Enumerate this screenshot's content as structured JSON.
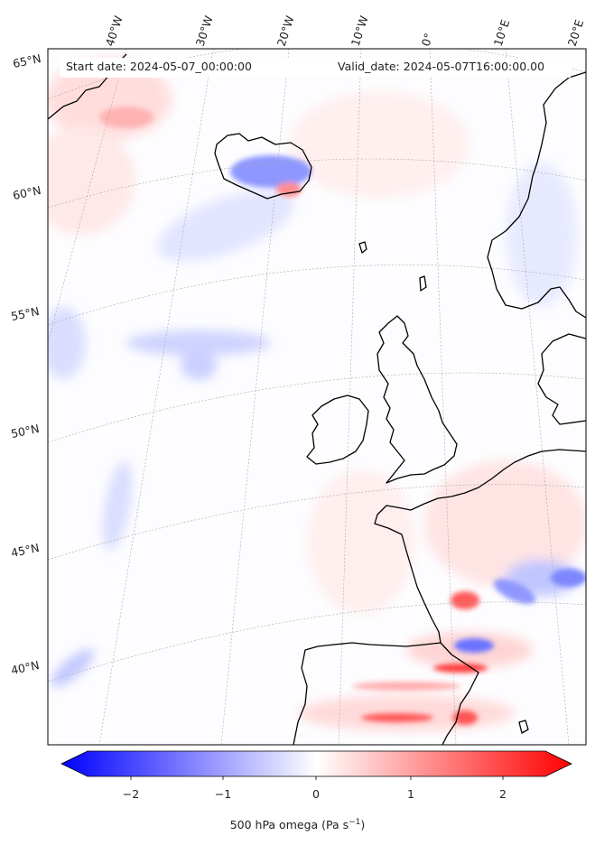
{
  "header": {
    "start_date": "Start date: 2024-05-07_00:00:00",
    "valid_date": "Valid_date: 2024-05-07T16:00:00.00"
  },
  "map": {
    "longitude_labels": [
      "40°W",
      "30°W",
      "20°W",
      "10°W",
      "0°",
      "10°E",
      "20°E"
    ],
    "latitude_labels": [
      "65°N",
      "60°N",
      "55°N",
      "50°N",
      "45°N",
      "40°N"
    ],
    "field": "500 hPa omega",
    "colormap": "bwr",
    "colors": {
      "negative": "#0000ff",
      "neutral": "#ffffff",
      "positive": "#ff0000",
      "coast": "#000000",
      "grid": "#999999"
    }
  },
  "colorbar": {
    "ticks": [
      "−2",
      "−1",
      "0",
      "1",
      "2"
    ],
    "range": [
      -2.6,
      2.6
    ],
    "extend": "both",
    "label_text": "500 hPa omega (Pa s",
    "label_exp": "−1",
    "label_close": ")"
  }
}
